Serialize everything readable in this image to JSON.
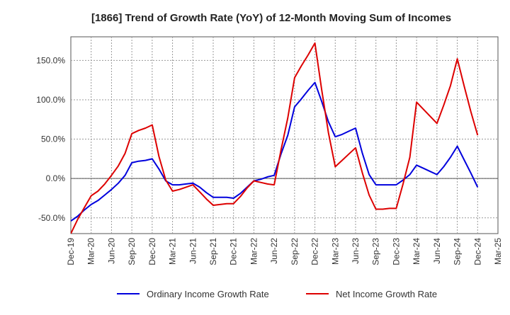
{
  "chart_data": {
    "type": "line",
    "title": "[1866]  Trend of Growth Rate (YoY) of 12-Month Moving Sum of Incomes",
    "xlabel": "",
    "ylabel": "",
    "x_tick_labels": [
      "Dec-19",
      "Mar-20",
      "Jun-20",
      "Sep-20",
      "Dec-20",
      "Mar-21",
      "Jun-21",
      "Sep-21",
      "Dec-21",
      "Mar-22",
      "Jun-22",
      "Sep-22",
      "Dec-22",
      "Mar-23",
      "Jun-23",
      "Sep-23",
      "Dec-23",
      "Mar-24",
      "Jun-24",
      "Sep-24",
      "Dec-24",
      "Mar-25"
    ],
    "y_ticks": [
      -50,
      0,
      50,
      100,
      150
    ],
    "y_tick_labels": [
      "-50.0%",
      "0.0%",
      "50.0%",
      "100.0%",
      "150.0%"
    ],
    "ylim": [
      -70,
      180
    ],
    "grid": true,
    "legend_position": "bottom",
    "x": [
      "Dec-19",
      "Jan-20",
      "Feb-20",
      "Mar-20",
      "Apr-20",
      "May-20",
      "Jun-20",
      "Jul-20",
      "Aug-20",
      "Sep-20",
      "Oct-20",
      "Nov-20",
      "Dec-20",
      "Jan-21",
      "Feb-21",
      "Mar-21",
      "Apr-21",
      "May-21",
      "Jun-21",
      "Jul-21",
      "Aug-21",
      "Sep-21",
      "Oct-21",
      "Nov-21",
      "Dec-21",
      "Jan-22",
      "Feb-22",
      "Mar-22",
      "Apr-22",
      "May-22",
      "Jun-22",
      "Jul-22",
      "Aug-22",
      "Sep-22",
      "Oct-22",
      "Nov-22",
      "Dec-22",
      "Jan-23",
      "Feb-23",
      "Mar-23",
      "Apr-23",
      "May-23",
      "Jun-23",
      "Jul-23",
      "Aug-23",
      "Sep-23",
      "Oct-23",
      "Nov-23",
      "Dec-23",
      "Jan-24",
      "Feb-24",
      "Mar-24",
      "Apr-24",
      "May-24",
      "Jun-24",
      "Jul-24",
      "Aug-24",
      "Sep-24",
      "Oct-24",
      "Nov-24",
      "Dec-24"
    ],
    "series": [
      {
        "name": "Ordinary Income Growth Rate",
        "color": "#0000dd",
        "values": [
          -54,
          -48,
          -40,
          -33,
          -28,
          -21,
          -14,
          -6,
          4,
          20,
          22,
          23,
          25,
          12,
          -3,
          -8,
          -8,
          -7,
          -6,
          -11,
          -18,
          -24,
          -24,
          -24,
          -25,
          -19,
          -11,
          -3,
          -1,
          2,
          4,
          31,
          55,
          91,
          101,
          112,
          122,
          98,
          72,
          53,
          56,
          60,
          64,
          32,
          5,
          -8,
          -8,
          -8,
          -8,
          -2,
          5,
          17,
          13,
          9,
          5,
          15,
          27,
          41,
          24,
          7,
          -11
        ]
      },
      {
        "name": "Net Income Growth Rate",
        "color": "#dd0000",
        "values": [
          -70,
          -52,
          -37,
          -22,
          -16,
          -7,
          4,
          16,
          32,
          57,
          61,
          64,
          68,
          28,
          -2,
          -16,
          -14,
          -11,
          -8,
          -17,
          -26,
          -34,
          -33,
          -32,
          -32,
          -23,
          -12,
          -3,
          -5,
          -7,
          -8,
          36,
          77,
          128,
          143,
          157,
          172,
          113,
          58,
          15,
          23,
          31,
          39,
          7,
          -21,
          -39,
          -39,
          -38,
          -38,
          -7,
          27,
          97,
          88,
          79,
          70,
          93,
          118,
          152,
          118,
          85,
          55
        ]
      }
    ]
  }
}
